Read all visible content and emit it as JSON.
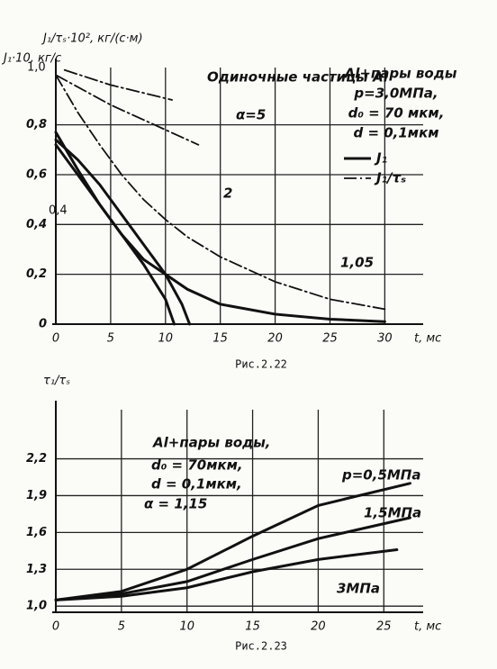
{
  "chart_data": [
    {
      "type": "line",
      "caption": "Рис.2.22",
      "ylabel": "J₁/τₛ·10², кг/(с·м)",
      "ylabel2": "J₁·10, кг/с",
      "xlabel": "t, мс",
      "xlim": [
        0,
        33.5
      ],
      "ylim": [
        0,
        1.03
      ],
      "xticks": [
        0,
        5,
        10,
        15,
        20,
        25,
        30
      ],
      "yticks": [
        0,
        {
          "value": 0.2,
          "label": "0,2"
        },
        {
          "value": 0.4,
          "label": "0,4"
        },
        {
          "value": 0.6,
          "label": "0,6"
        },
        {
          "value": 0.8,
          "label": "0,8"
        }
      ],
      "grid": true,
      "color": "#111",
      "series": [
        {
          "style": "solid",
          "x": [
            0,
            2,
            4,
            6,
            8,
            10,
            10.8
          ],
          "values": [
            0.72,
            0.6,
            0.48,
            0.36,
            0.24,
            0.1,
            0
          ]
        },
        {
          "style": "solid",
          "x": [
            0,
            2,
            4,
            6,
            8,
            10,
            11.5,
            12.2
          ],
          "values": [
            0.74,
            0.66,
            0.56,
            0.44,
            0.32,
            0.2,
            0.08,
            0
          ]
        },
        {
          "style": "solid",
          "x": [
            0,
            2,
            4,
            6,
            8,
            10,
            12,
            15,
            20,
            25,
            30
          ],
          "values": [
            0.77,
            0.62,
            0.48,
            0.36,
            0.26,
            0.2,
            0.14,
            0.08,
            0.04,
            0.02,
            0.01
          ]
        },
        {
          "style": "dashdot",
          "x": [
            0.8,
            5,
            10.6
          ],
          "values": [
            1.02,
            0.96,
            0.9
          ]
        },
        {
          "style": "dashdot",
          "x": [
            0,
            5,
            10,
            13
          ],
          "values": [
            1.0,
            0.88,
            0.78,
            0.72
          ]
        },
        {
          "style": "dashdot",
          "x": [
            0,
            2,
            4,
            6,
            8,
            10,
            12,
            15,
            20,
            25,
            30
          ],
          "values": [
            1.0,
            0.85,
            0.72,
            0.6,
            0.5,
            0.42,
            0.35,
            0.27,
            0.17,
            0.1,
            0.06
          ]
        }
      ],
      "legend": [
        {
          "label": "J₁",
          "style": "solid"
        },
        {
          "label": "J₁/τₛ",
          "style": "dashdot"
        }
      ],
      "annotations": [
        "Одиночные частицы Al",
        "Al+пары воды",
        "p=3,0МПа,",
        "d₀ = 70 мкм,",
        "d = 0,1мкм",
        "α=5",
        "2",
        "1,05",
        "0,4",
        "1,0"
      ]
    },
    {
      "type": "line",
      "caption": "Рис.2.23",
      "ylabel": "τ₁/τₛ",
      "xlabel": "t, мс",
      "xlim": [
        0,
        28
      ],
      "ylim": [
        0.95,
        2.6
      ],
      "xticks": [
        0,
        5,
        10,
        15,
        20,
        25
      ],
      "yticks": [
        {
          "value": 1.0,
          "label": "1,0"
        },
        {
          "value": 1.3,
          "label": "1,3"
        },
        {
          "value": 1.6,
          "label": "1,6"
        },
        {
          "value": 1.9,
          "label": "1,9"
        },
        {
          "value": 2.2,
          "label": "2,2"
        }
      ],
      "grid": true,
      "color": "#111",
      "series": [
        {
          "style": "solid",
          "x": [
            0,
            5,
            10,
            15,
            20,
            27
          ],
          "values": [
            1.05,
            1.12,
            1.3,
            1.57,
            1.82,
            2.0
          ]
        },
        {
          "style": "solid",
          "x": [
            0,
            5,
            10,
            15,
            20,
            27
          ],
          "values": [
            1.05,
            1.1,
            1.2,
            1.38,
            1.55,
            1.72
          ]
        },
        {
          "style": "solid",
          "x": [
            0,
            5,
            10,
            15,
            20,
            26
          ],
          "values": [
            1.05,
            1.08,
            1.15,
            1.28,
            1.38,
            1.46
          ]
        }
      ],
      "annotations": [
        "p=0,5МПа",
        "1,5МПа",
        "3МПа",
        "Al+пары воды,",
        "d₀ = 70мкм,",
        "d = 0,1мкм,",
        "α = 1,15"
      ]
    }
  ]
}
